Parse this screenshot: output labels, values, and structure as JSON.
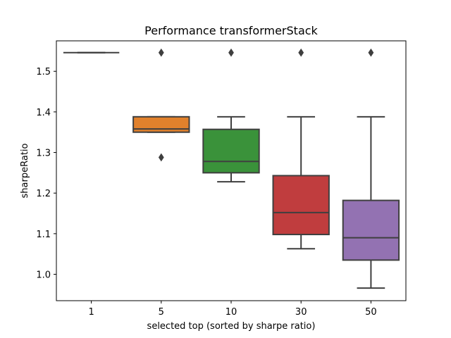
{
  "chart_data": {
    "type": "box",
    "title": "Performance transformerStack",
    "xlabel": "selected top (sorted by sharpe ratio)",
    "ylabel": "sharpeRatio",
    "ylim": [
      0.935,
      1.575
    ],
    "yticks": [
      1.0,
      1.1,
      1.2,
      1.3,
      1.4,
      1.5
    ],
    "ytick_labels": [
      "1.0",
      "1.1",
      "1.2",
      "1.3",
      "1.4",
      "1.5"
    ],
    "categories": [
      "1",
      "5",
      "10",
      "30",
      "50"
    ],
    "grid": false,
    "boxes": [
      {
        "category": "1",
        "color": "#3274a1",
        "q1": 1.546,
        "median": 1.546,
        "q3": 1.546,
        "whisker_low": 1.546,
        "whisker_high": 1.546,
        "outliers": []
      },
      {
        "category": "5",
        "color": "#e1812c",
        "q1": 1.35,
        "median": 1.358,
        "q3": 1.388,
        "whisker_low": 1.35,
        "whisker_high": 1.388,
        "outliers": [
          1.288,
          1.546
        ]
      },
      {
        "category": "10",
        "color": "#3a923a",
        "q1": 1.25,
        "median": 1.278,
        "q3": 1.357,
        "whisker_low": 1.228,
        "whisker_high": 1.388,
        "outliers": [
          1.546
        ]
      },
      {
        "category": "30",
        "color": "#c03d3e",
        "q1": 1.098,
        "median": 1.152,
        "q3": 1.243,
        "whisker_low": 1.063,
        "whisker_high": 1.388,
        "outliers": [
          1.546
        ]
      },
      {
        "category": "50",
        "color": "#9372b2",
        "q1": 1.035,
        "median": 1.09,
        "q3": 1.182,
        "whisker_low": 0.966,
        "whisker_high": 1.388,
        "outliers": [
          1.546
        ]
      }
    ]
  }
}
